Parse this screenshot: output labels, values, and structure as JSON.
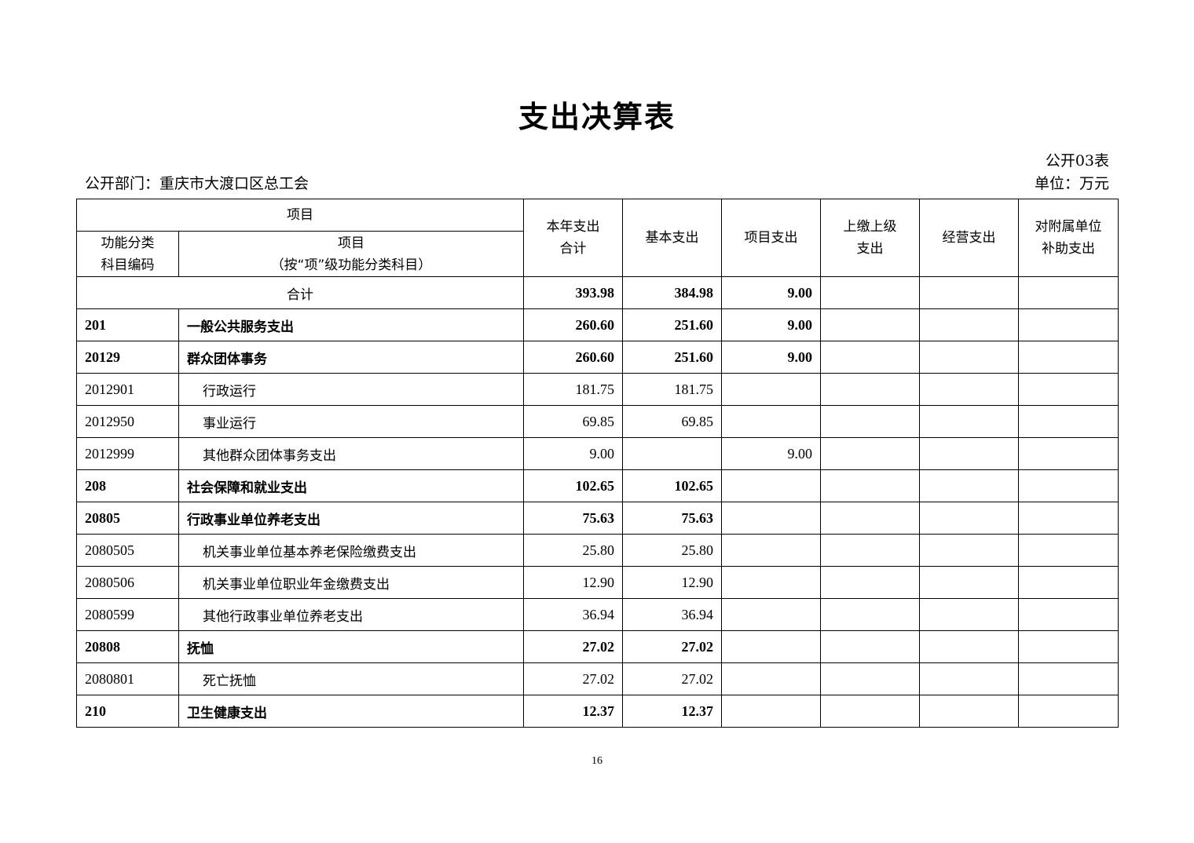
{
  "title": "支出决算表",
  "table_no": "公开03表",
  "department": "公开部门：重庆市大渡口区总工会",
  "unit": "单位：万元",
  "headers": {
    "item_group": "项目",
    "code": "功能分类\n科目编码",
    "item": "项目\n（按“项”级功能分类科目）",
    "total": "本年支出\n合计",
    "basic": "基本支出",
    "project": "项目支出",
    "upper": "上缴上级\n支出",
    "business": "经营支出",
    "subsidy": "对附属单位\n补助支出"
  },
  "total_row": {
    "label": "合计",
    "total": "393.98",
    "basic": "384.98",
    "project": "9.00",
    "upper": "",
    "business": "",
    "subsidy": ""
  },
  "rows": [
    {
      "code": "201",
      "name": "一般公共服务支出",
      "total": "260.60",
      "basic": "251.60",
      "project": "9.00",
      "bold": true
    },
    {
      "code": "20129",
      "name": "群众团体事务",
      "total": "260.60",
      "basic": "251.60",
      "project": "9.00",
      "bold": true
    },
    {
      "code": "2012901",
      "name": "行政运行",
      "total": "181.75",
      "basic": "181.75",
      "project": "",
      "bold": false
    },
    {
      "code": "2012950",
      "name": "事业运行",
      "total": "69.85",
      "basic": "69.85",
      "project": "",
      "bold": false
    },
    {
      "code": "2012999",
      "name": "其他群众团体事务支出",
      "total": "9.00",
      "basic": "",
      "project": "9.00",
      "bold": false
    },
    {
      "code": "208",
      "name": "社会保障和就业支出",
      "total": "102.65",
      "basic": "102.65",
      "project": "",
      "bold": true
    },
    {
      "code": "20805",
      "name": "行政事业单位养老支出",
      "total": "75.63",
      "basic": "75.63",
      "project": "",
      "bold": true
    },
    {
      "code": "2080505",
      "name": "机关事业单位基本养老保险缴费支出",
      "total": "25.80",
      "basic": "25.80",
      "project": "",
      "bold": false
    },
    {
      "code": "2080506",
      "name": "机关事业单位职业年金缴费支出",
      "total": "12.90",
      "basic": "12.90",
      "project": "",
      "bold": false
    },
    {
      "code": "2080599",
      "name": "其他行政事业单位养老支出",
      "total": "36.94",
      "basic": "36.94",
      "project": "",
      "bold": false
    },
    {
      "code": "20808",
      "name": "抚恤",
      "total": "27.02",
      "basic": "27.02",
      "project": "",
      "bold": true
    },
    {
      "code": "2080801",
      "name": "死亡抚恤",
      "total": "27.02",
      "basic": "27.02",
      "project": "",
      "bold": false
    },
    {
      "code": "210",
      "name": "卫生健康支出",
      "total": "12.37",
      "basic": "12.37",
      "project": "",
      "bold": true
    }
  ],
  "page_number": "16"
}
